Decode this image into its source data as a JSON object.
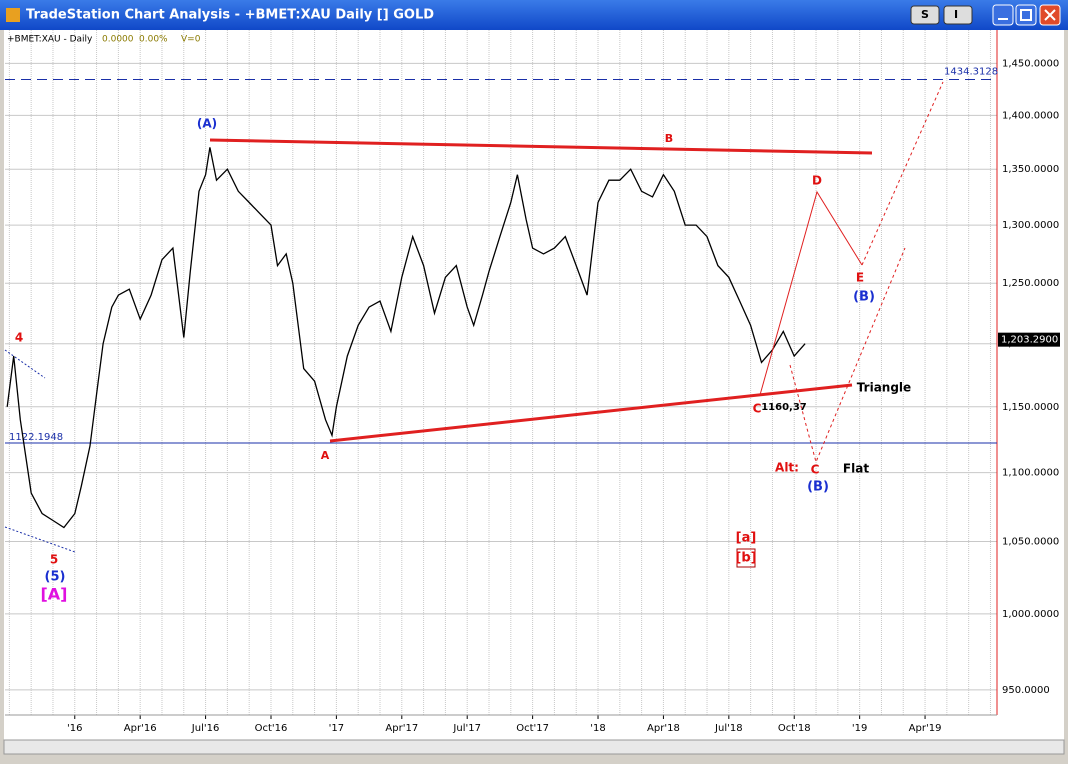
{
  "window": {
    "title": "TradeStation Chart Analysis - +BMET:XAU Daily [] GOLD",
    "buttons": [
      "S",
      "I"
    ]
  },
  "chart_data": {
    "type": "line",
    "symbol": "+BMET:XAU - Daily",
    "info": [
      "0.0000",
      "0.00%",
      "V=0"
    ],
    "log_scale": true,
    "grid": true,
    "xlim": [
      -3.2,
      42.3
    ],
    "xticks": [
      {
        "value": 0,
        "label": "'16"
      },
      {
        "value": 3,
        "label": "Apr'16"
      },
      {
        "value": 6,
        "label": "Jul'16"
      },
      {
        "value": 9,
        "label": "Oct'16"
      },
      {
        "value": 12,
        "label": "'17"
      },
      {
        "value": 15,
        "label": "Apr'17"
      },
      {
        "value": 18,
        "label": "Jul'17"
      },
      {
        "value": 21,
        "label": "Oct'17"
      },
      {
        "value": 24,
        "label": "'18"
      },
      {
        "value": 27,
        "label": "Apr'18"
      },
      {
        "value": 30,
        "label": "Jul'18"
      },
      {
        "value": 33,
        "label": "Oct'18"
      },
      {
        "value": 36,
        "label": "'19"
      },
      {
        "value": 39,
        "label": "Apr'19"
      }
    ],
    "ylim": [
      934,
      1483
    ],
    "yticks": [
      {
        "value": 950,
        "label": "950.0000"
      },
      {
        "value": 1000,
        "label": "1,000.0000"
      },
      {
        "value": 1050,
        "label": "1,050.0000"
      },
      {
        "value": 1100,
        "label": "1,100.0000"
      },
      {
        "value": 1150,
        "label": "1,150.0000"
      },
      {
        "value": 1200,
        "label": "1,200.0000"
      },
      {
        "value": 1250,
        "label": "1,250.0000"
      },
      {
        "value": 1300,
        "label": "1,300.0000"
      },
      {
        "value": 1350,
        "label": "1,350.0000"
      },
      {
        "value": 1400,
        "label": "1,400.0000"
      },
      {
        "value": 1450,
        "label": "1,450.0000"
      }
    ],
    "last_price": {
      "value": 1203.29,
      "label": "1,203.2900"
    },
    "levels": [
      {
        "value": 1434.3128,
        "label": "1434.3128",
        "color": "#1a2fa8",
        "style": "dashed"
      },
      {
        "value": 1122.1948,
        "label": "1122.1948",
        "color": "#1a2fa8",
        "style": "solid"
      }
    ],
    "series": [
      {
        "name": "+BMET:XAU",
        "color": "#000000",
        "x": [
          -3.1,
          -2.8,
          -2.5,
          -2,
          -1.5,
          -1,
          -0.5,
          0,
          0.3,
          0.7,
          1,
          1.3,
          1.7,
          2,
          2.5,
          3,
          3.5,
          4,
          4.5,
          5,
          5.3,
          5.7,
          6,
          6.2,
          6.5,
          7,
          7.5,
          8,
          8.5,
          9,
          9.3,
          9.7,
          10,
          10.5,
          11,
          11.5,
          11.8,
          12,
          12.5,
          13,
          13.5,
          14,
          14.5,
          15,
          15.5,
          16,
          16.5,
          17,
          17.5,
          18,
          18.3,
          18.7,
          19,
          19.5,
          20,
          20.3,
          20.7,
          21,
          21.5,
          22,
          22.5,
          23,
          23.5,
          24,
          24.5,
          25,
          25.5,
          26,
          26.5,
          27,
          27.5,
          28,
          28.5,
          29,
          29.5,
          30,
          30.5,
          31,
          31.5,
          32,
          32.5,
          33,
          33.5
        ],
        "values": [
          1150,
          1190,
          1140,
          1085,
          1070,
          1065,
          1060,
          1070,
          1090,
          1120,
          1160,
          1200,
          1230,
          1240,
          1245,
          1220,
          1240,
          1270,
          1280,
          1205,
          1260,
          1330,
          1345,
          1370,
          1340,
          1350,
          1330,
          1320,
          1310,
          1300,
          1265,
          1275,
          1250,
          1180,
          1170,
          1140,
          1128,
          1150,
          1190,
          1215,
          1230,
          1235,
          1210,
          1255,
          1290,
          1265,
          1225,
          1255,
          1265,
          1230,
          1215,
          1240,
          1260,
          1290,
          1320,
          1345,
          1305,
          1280,
          1275,
          1280,
          1290,
          1265,
          1240,
          1320,
          1340,
          1340,
          1350,
          1330,
          1325,
          1345,
          1330,
          1300,
          1300,
          1290,
          1265,
          1255,
          1235,
          1215,
          1185,
          1195,
          1210,
          1190,
          1200
        ]
      }
    ],
    "annotations": [
      {
        "text": "(A)",
        "color": "#1a2fd0"
      },
      {
        "text": "B",
        "color": "#e01010"
      },
      {
        "text": "4",
        "color": "#e01010"
      },
      {
        "text": "5",
        "color": "#e01010"
      },
      {
        "text": "(5)",
        "color": "#1a2fd0"
      },
      {
        "text": "[A]",
        "color": "#e010e0"
      },
      {
        "text": "A",
        "color": "#e01010"
      },
      {
        "text": "C",
        "color": "#e01010"
      },
      {
        "text": "1160,37",
        "color": "#000000"
      },
      {
        "text": "Triangle",
        "color": "#000000"
      },
      {
        "text": "D",
        "color": "#e01010"
      },
      {
        "text": "E",
        "color": "#e01010"
      },
      {
        "text": "(B)",
        "color": "#1a2fd0"
      },
      {
        "text": "Alt:",
        "color": "#e01010"
      },
      {
        "text": "C",
        "color": "#e01010"
      },
      {
        "text": "(B)",
        "color": "#1a2fd0"
      },
      {
        "text": "Flat",
        "color": "#000000"
      },
      {
        "text": "[a]",
        "color": "#e01010"
      },
      {
        "text": "[b]",
        "color": "#e01010"
      }
    ]
  }
}
